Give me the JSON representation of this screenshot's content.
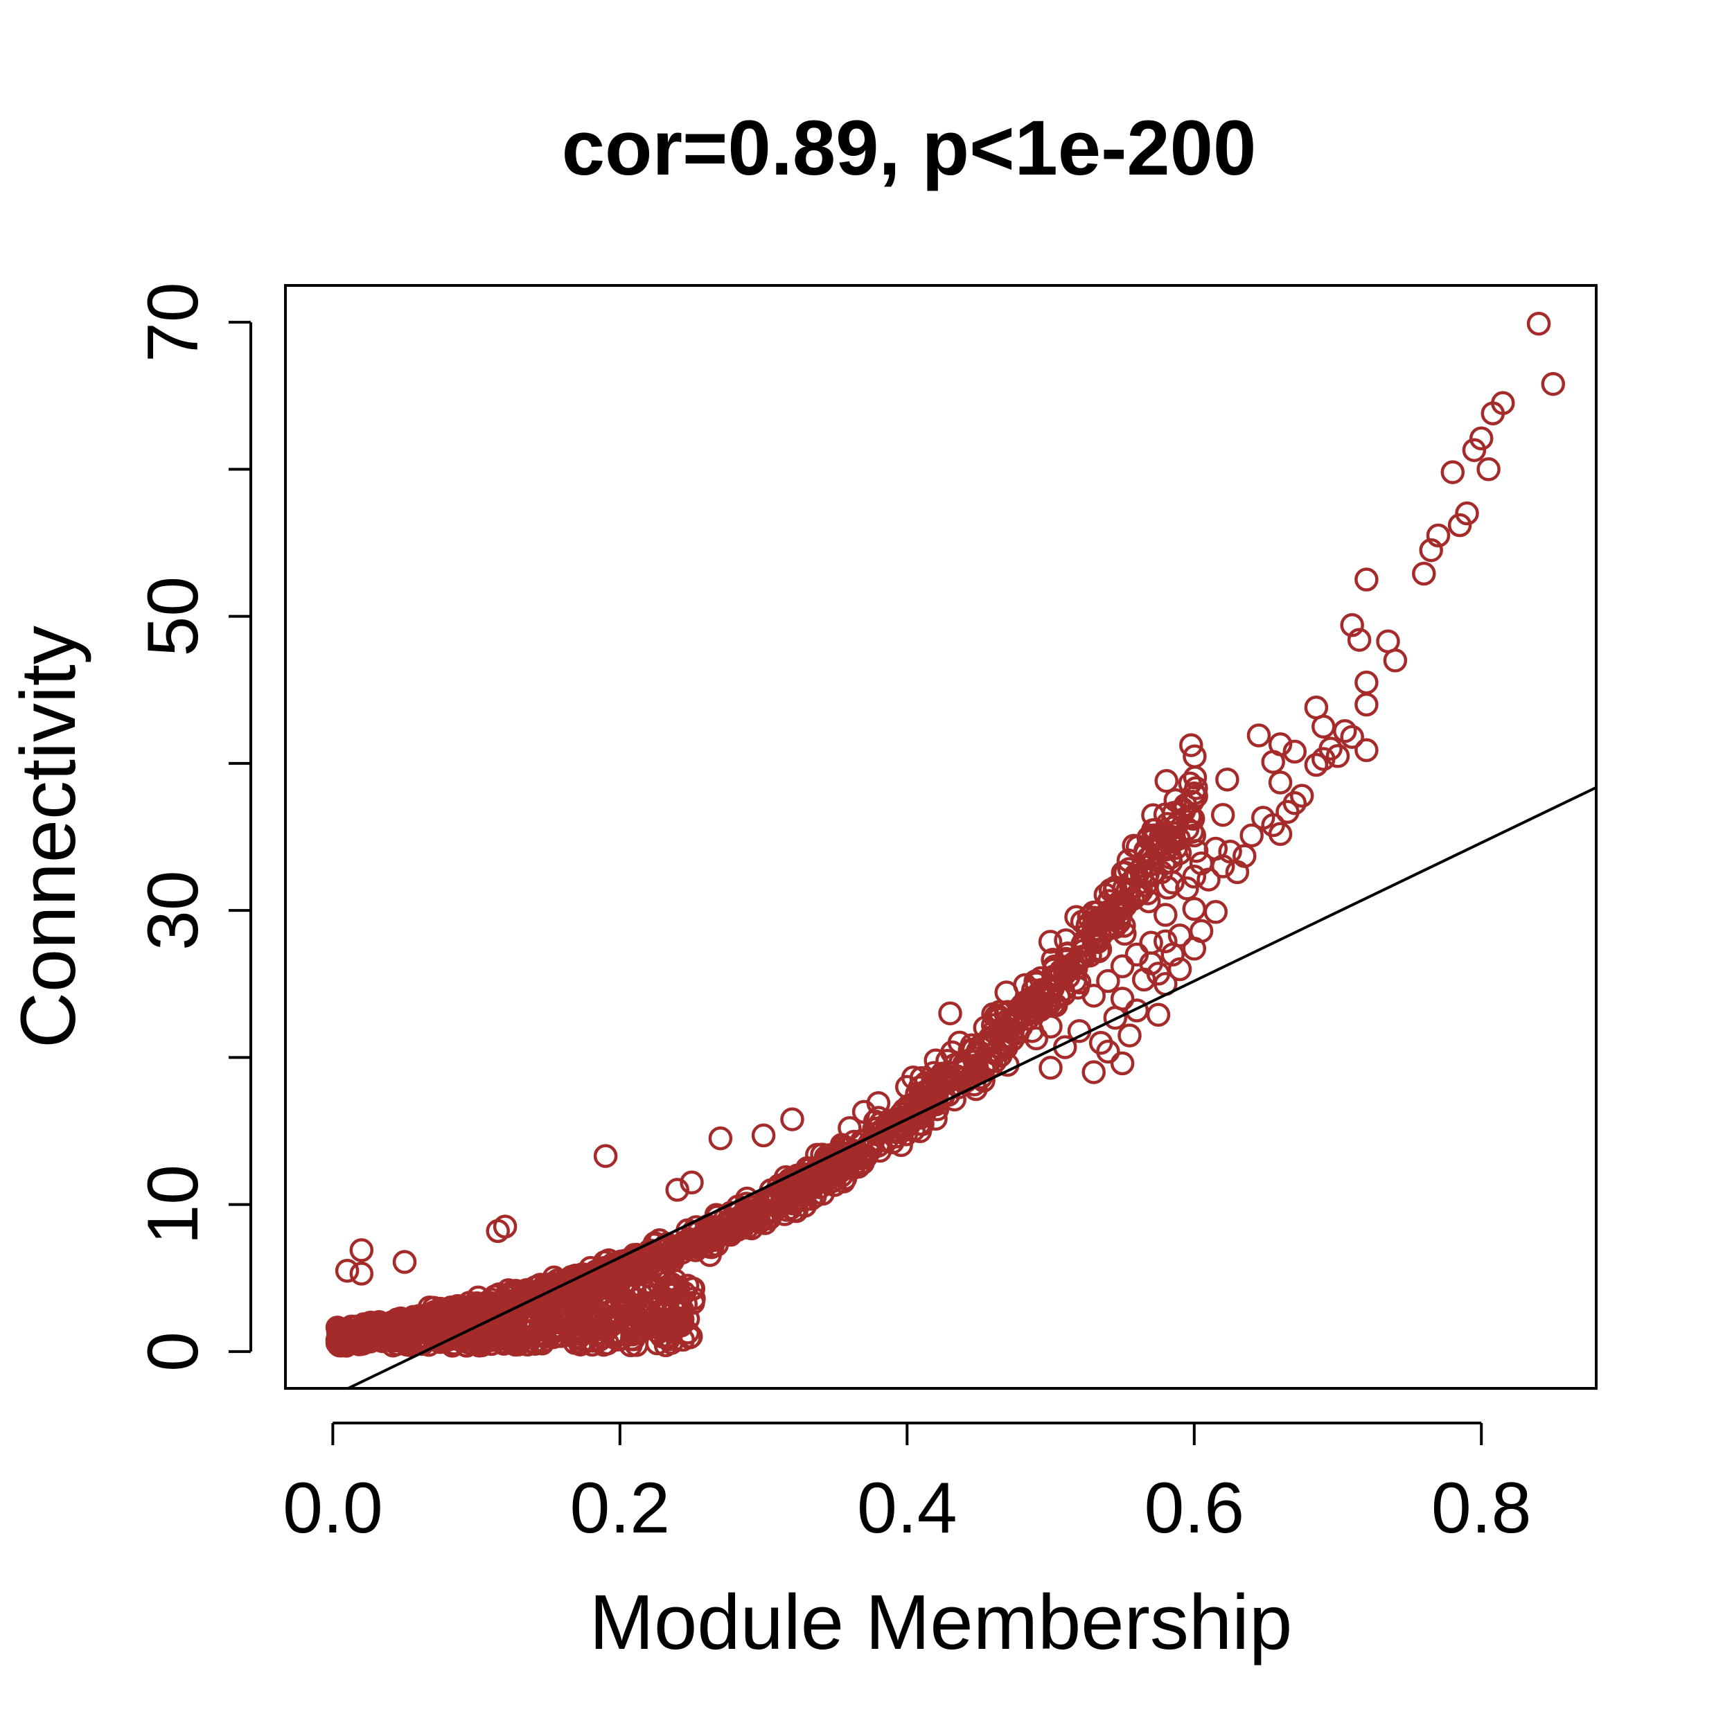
{
  "chart_data": {
    "type": "scatter",
    "title": "cor=0.89, p<1e-200",
    "xlabel": "Module Membership",
    "ylabel": "Connectivity",
    "xlim": [
      -0.033,
      0.88
    ],
    "ylim": [
      -2.5,
      72.5
    ],
    "x_ticks": [
      0.0,
      0.2,
      0.4,
      0.6,
      0.8
    ],
    "x_tick_labels": [
      "0.0",
      "0.2",
      "0.4",
      "0.6",
      "0.8"
    ],
    "y_ticks": [
      0,
      10,
      20,
      30,
      40,
      50,
      60,
      70
    ],
    "y_tick_labels": [
      "0",
      "10",
      "",
      "30",
      "",
      "50",
      "",
      "70"
    ],
    "point_color": "#A52A2A",
    "fit_line": {
      "intercept": -3.0,
      "slope": 47.0,
      "color": "#000000"
    },
    "grid": false,
    "legend": "none",
    "series": [
      {
        "points": [
          [
            0.84,
            69.9
          ],
          [
            0.85,
            65.8
          ],
          [
            0.815,
            64.5
          ],
          [
            0.808,
            63.8
          ],
          [
            0.8,
            62.1
          ],
          [
            0.795,
            61.3
          ],
          [
            0.805,
            60.0
          ],
          [
            0.78,
            59.8
          ],
          [
            0.79,
            57.0
          ],
          [
            0.785,
            56.2
          ],
          [
            0.77,
            55.5
          ],
          [
            0.765,
            54.5
          ],
          [
            0.76,
            52.9
          ],
          [
            0.72,
            52.5
          ],
          [
            0.71,
            49.4
          ],
          [
            0.715,
            48.4
          ],
          [
            0.735,
            48.3
          ],
          [
            0.74,
            47.0
          ],
          [
            0.72,
            45.5
          ],
          [
            0.72,
            44.0
          ],
          [
            0.685,
            43.8
          ],
          [
            0.69,
            42.5
          ],
          [
            0.705,
            42.2
          ],
          [
            0.71,
            41.8
          ],
          [
            0.645,
            41.9
          ],
          [
            0.66,
            41.3
          ],
          [
            0.67,
            40.8
          ],
          [
            0.695,
            41.0
          ],
          [
            0.7,
            40.5
          ],
          [
            0.72,
            40.9
          ],
          [
            0.655,
            40.1
          ],
          [
            0.685,
            39.9
          ],
          [
            0.69,
            40.3
          ],
          [
            0.623,
            38.9
          ],
          [
            0.66,
            38.7
          ],
          [
            0.675,
            37.8
          ],
          [
            0.67,
            37.3
          ],
          [
            0.665,
            36.7
          ],
          [
            0.62,
            36.5
          ],
          [
            0.648,
            36.3
          ],
          [
            0.655,
            35.8
          ],
          [
            0.66,
            35.2
          ],
          [
            0.64,
            35.1
          ],
          [
            0.6,
            35.1
          ],
          [
            0.615,
            34.2
          ],
          [
            0.625,
            34.0
          ],
          [
            0.59,
            33.9
          ],
          [
            0.635,
            33.7
          ],
          [
            0.605,
            33.2
          ],
          [
            0.62,
            33.0
          ],
          [
            0.63,
            32.6
          ],
          [
            0.6,
            32.3
          ],
          [
            0.61,
            32.1
          ],
          [
            0.585,
            31.9
          ],
          [
            0.595,
            31.5
          ],
          [
            0.6,
            30.1
          ],
          [
            0.615,
            29.9
          ],
          [
            0.58,
            29.7
          ],
          [
            0.605,
            28.6
          ],
          [
            0.59,
            28.3
          ],
          [
            0.58,
            27.9
          ],
          [
            0.57,
            27.8
          ],
          [
            0.6,
            27.4
          ],
          [
            0.585,
            27.0
          ],
          [
            0.56,
            27.0
          ],
          [
            0.57,
            26.4
          ],
          [
            0.55,
            26.2
          ],
          [
            0.59,
            26.0
          ],
          [
            0.575,
            25.7
          ],
          [
            0.58,
            25.0
          ],
          [
            0.565,
            25.3
          ],
          [
            0.54,
            25.2
          ],
          [
            0.51,
            25.7
          ],
          [
            0.52,
            25.1
          ],
          [
            0.53,
            24.2
          ],
          [
            0.55,
            24.0
          ],
          [
            0.56,
            23.2
          ],
          [
            0.575,
            22.9
          ],
          [
            0.545,
            22.7
          ],
          [
            0.43,
            23.0
          ],
          [
            0.47,
            23.1
          ],
          [
            0.475,
            22.5
          ],
          [
            0.5,
            22.1
          ],
          [
            0.52,
            21.8
          ],
          [
            0.555,
            21.5
          ],
          [
            0.535,
            21.0
          ],
          [
            0.54,
            20.4
          ],
          [
            0.51,
            20.7
          ],
          [
            0.49,
            21.3
          ],
          [
            0.46,
            21.0
          ],
          [
            0.45,
            20.2
          ],
          [
            0.42,
            19.8
          ],
          [
            0.44,
            19.1
          ],
          [
            0.47,
            19.5
          ],
          [
            0.5,
            19.3
          ],
          [
            0.53,
            19.0
          ],
          [
            0.55,
            19.6
          ],
          [
            0.41,
            18.6
          ],
          [
            0.4,
            18.0
          ],
          [
            0.38,
            16.9
          ],
          [
            0.37,
            16.3
          ],
          [
            0.36,
            15.2
          ],
          [
            0.32,
            15.8
          ],
          [
            0.3,
            14.7
          ],
          [
            0.27,
            14.5
          ],
          [
            0.25,
            11.5
          ],
          [
            0.24,
            11.0
          ],
          [
            0.19,
            13.3
          ],
          [
            0.12,
            8.5
          ],
          [
            0.115,
            8.2
          ],
          [
            0.02,
            6.9
          ],
          [
            0.01,
            5.5
          ],
          [
            0.02,
            5.3
          ],
          [
            0.05,
            6.1
          ]
        ]
      }
    ]
  }
}
